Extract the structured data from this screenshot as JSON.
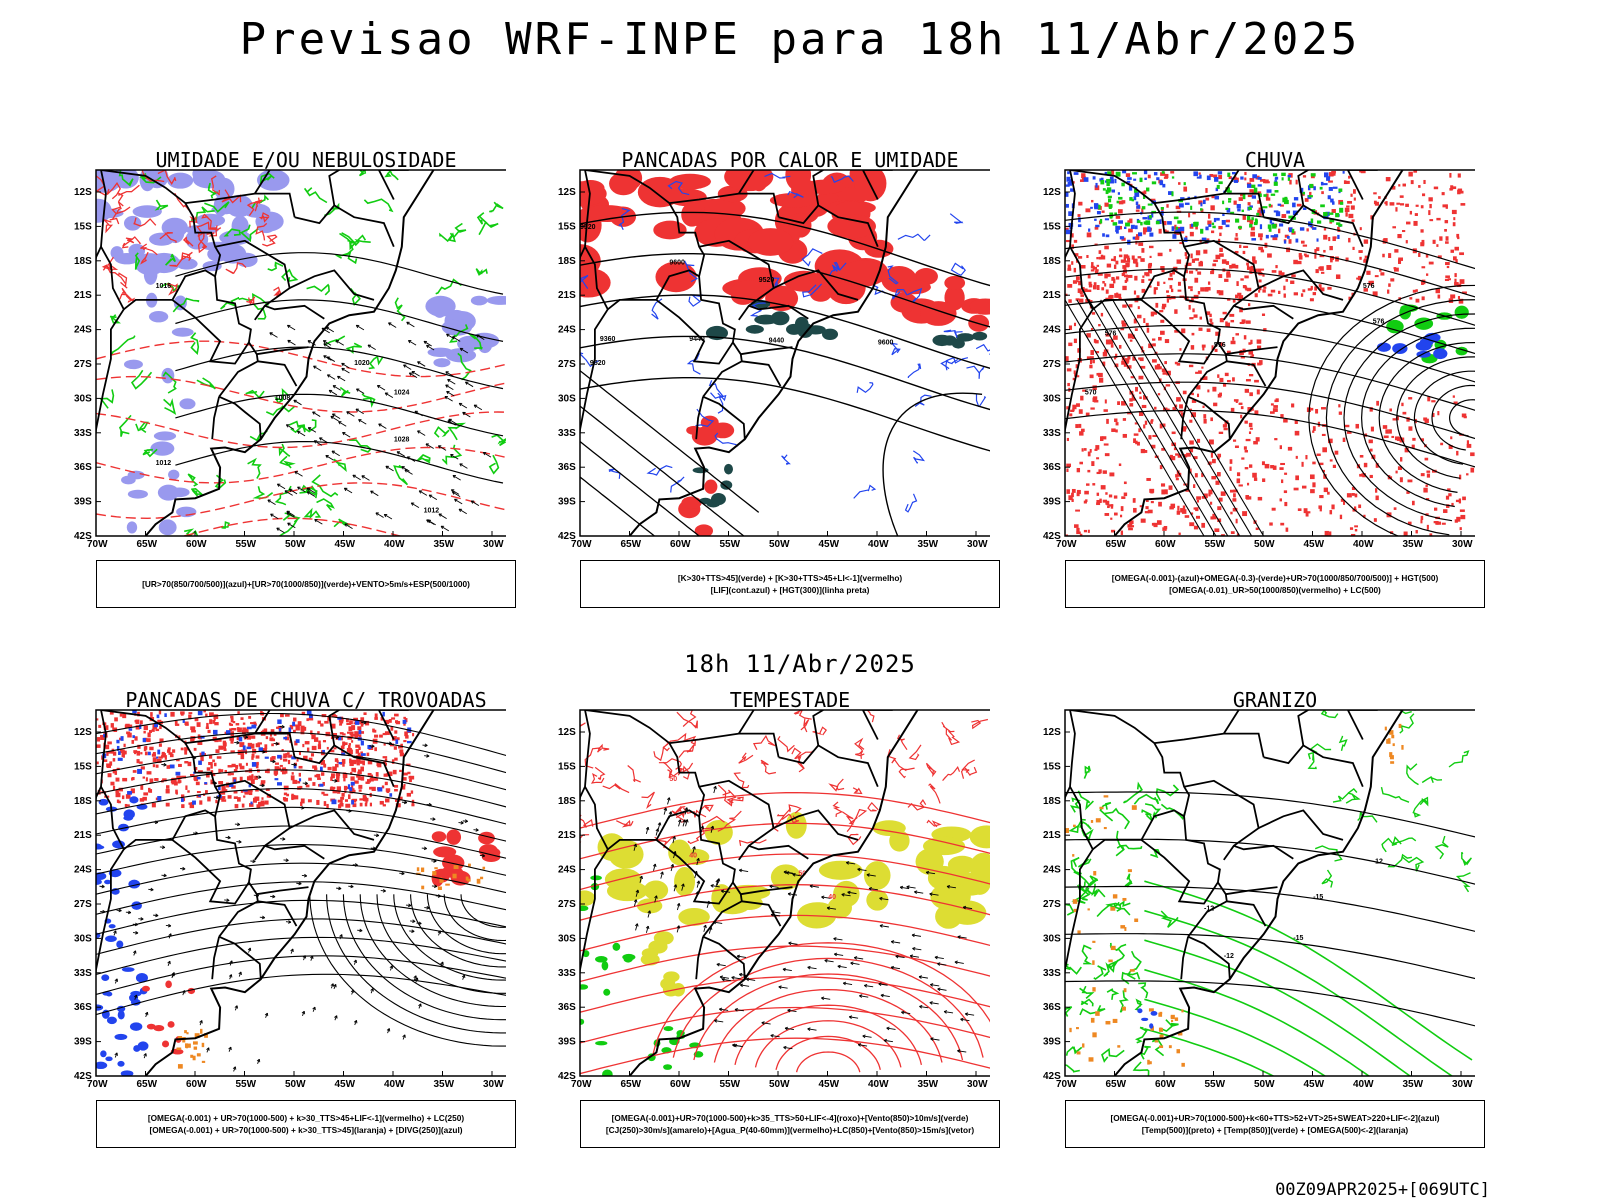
{
  "title": "Previsao WRF-INPE  para 18h 11/Abr/2025",
  "mid_time": "18h 11/Abr/2025",
  "footer": "00Z09APR2025+[069UTC]",
  "lat_ticks": [
    "12S",
    "15S",
    "18S",
    "21S",
    "24S",
    "27S",
    "30S",
    "33S",
    "36S",
    "39S",
    "42S"
  ],
  "lon_ticks": [
    "70W",
    "65W",
    "60W",
    "55W",
    "50W",
    "45W",
    "40W",
    "35W",
    "30W"
  ],
  "colors": {
    "blue": "#9999ee",
    "green": "#11cc11",
    "red": "#ee3333",
    "yellow": "#dddd33",
    "teal": "#1e4848",
    "orange": "#ee8822",
    "darkblue": "#2244ee"
  },
  "panels": [
    {
      "title": "UMIDADE E/OU NEBULOSIDADE",
      "legend": [
        "[UR>70(850/700/500)](azul)+[UR>70(1000/850)](verde)+VENTO>5m/s+ESP(500/1000)"
      ],
      "labels": [
        "1008",
        "1012",
        "1016",
        "1020",
        "1024",
        "1028",
        "1012"
      ]
    },
    {
      "title": "PANCADAS POR CALOR E UMIDADE",
      "legend": [
        "[K>30+TTS>45](verde)  +  [K>30+TTS>45+LI<-1](vermelho)",
        "[LIF](cont.azul)  +  [HGT(300)](linha preta)"
      ],
      "labels": [
        "9520",
        "9600",
        "9520",
        "9440",
        "9360",
        "9520",
        "9440",
        "9600"
      ]
    },
    {
      "title": "CHUVA",
      "legend": [
        "[OMEGA(-0.001)-(azul)+OMEGA(-0.3)-(verde)+UR>70(1000/850/700/500)]  +  HGT(500)",
        "[OMEGA(-0.01)_UR>50(1000/850)(vermelho)  +  LC(500)"
      ],
      "labels": [
        "576",
        "576",
        "576",
        "576",
        "570"
      ]
    },
    {
      "title": "PANCADAS DE CHUVA C/ TROVOADAS",
      "legend": [
        "[OMEGA(-0.001)  +  UR>70(1000-500)  +  k>30_TTS>45+LIF<-1](vermelho)  +  LC(250)",
        "[OMEGA(-0.001)  +  UR>70(1000-500)  +  k>30_TTS>45](laranja)  +  [DIVG(250)](azul)"
      ],
      "labels": []
    },
    {
      "title": "TEMPESTADE",
      "legend": [
        "[OMEGA(-0.001)+UR>70(1000-500)+k>35_TTS>50+LIF<-4](roxo)+[Vento(850)>10m/s](verde)",
        "[CJ(250)>30m/s](amarelo)+[Agua_P(40-60mm)](vermelho)+LC(850)+[Vento(850)>15m/s](vetor)"
      ],
      "labels": [
        "50",
        "40",
        "50",
        "40"
      ]
    },
    {
      "title": "GRANIZO",
      "legend": [
        "[OMEGA(-0.001)+UR>70(1000-500)+k<60+TTS>52+VT>25+SWEAT>220+LIF<-2](azul)",
        "[Temp(500)](preto)  +  [Temp(850)](verde)  +  [OMEGA(500)<-2](laranja)"
      ],
      "labels": [
        "-12",
        "-12",
        "-15",
        "-15",
        "-12"
      ]
    }
  ]
}
